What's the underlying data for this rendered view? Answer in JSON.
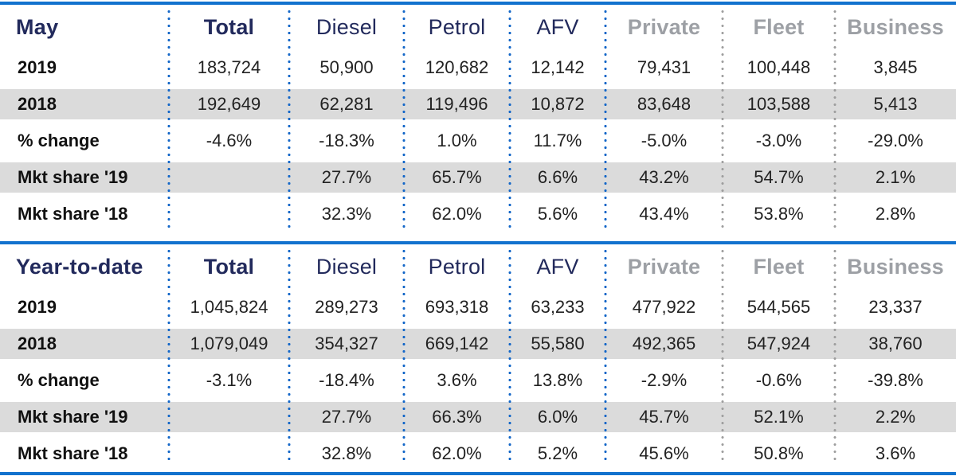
{
  "styles": {
    "accent_blue_rule": "#1272CE",
    "navy_header_text": "#222A5C",
    "gray_header_text": "#9DA0A5",
    "row_band_gray": "#DBDBDB",
    "separator_dot_blue": "#1467C8",
    "separator_dot_gray": "#9E9E9E"
  },
  "chart_data": [
    {
      "type": "table",
      "title": "May",
      "columns": [
        "Total",
        "Diesel",
        "Petrol",
        "AFV",
        "Private",
        "Fleet",
        "Business"
      ],
      "header_styles": [
        "bold-navy",
        "navy",
        "navy",
        "navy",
        "gray",
        "gray",
        "gray"
      ],
      "rows": [
        {
          "label": "2019",
          "values": [
            "183,724",
            "50,900",
            "120,682",
            "12,142",
            "79,431",
            "100,448",
            "3,845"
          ]
        },
        {
          "label": "2018",
          "values": [
            "192,649",
            "62,281",
            "119,496",
            "10,872",
            "83,648",
            "103,588",
            "5,413"
          ]
        },
        {
          "label": "% change",
          "values": [
            "-4.6%",
            "-18.3%",
            "1.0%",
            "11.7%",
            "-5.0%",
            "-3.0%",
            "-29.0%"
          ]
        },
        {
          "label": "Mkt share '19",
          "values": [
            "",
            "27.7%",
            "65.7%",
            "6.6%",
            "43.2%",
            "54.7%",
            "2.1%"
          ]
        },
        {
          "label": "Mkt share '18",
          "values": [
            "",
            "32.3%",
            "62.0%",
            "5.6%",
            "43.4%",
            "53.8%",
            "2.8%"
          ]
        }
      ]
    },
    {
      "type": "table",
      "title": "Year-to-date",
      "columns": [
        "Total",
        "Diesel",
        "Petrol",
        "AFV",
        "Private",
        "Fleet",
        "Business"
      ],
      "header_styles": [
        "bold-navy",
        "navy",
        "navy",
        "navy",
        "gray",
        "gray",
        "gray"
      ],
      "rows": [
        {
          "label": "2019",
          "values": [
            "1,045,824",
            "289,273",
            "693,318",
            "63,233",
            "477,922",
            "544,565",
            "23,337"
          ]
        },
        {
          "label": "2018",
          "values": [
            "1,079,049",
            "354,327",
            "669,142",
            "55,580",
            "492,365",
            "547,924",
            "38,760"
          ]
        },
        {
          "label": "% change",
          "values": [
            "-3.1%",
            "-18.4%",
            "3.6%",
            "13.8%",
            "-2.9%",
            "-0.6%",
            "-39.8%"
          ]
        },
        {
          "label": "Mkt share '19",
          "values": [
            "",
            "27.7%",
            "66.3%",
            "6.0%",
            "45.7%",
            "52.1%",
            "2.2%"
          ]
        },
        {
          "label": "Mkt share '18",
          "values": [
            "",
            "32.8%",
            "62.0%",
            "5.2%",
            "45.6%",
            "50.8%",
            "3.6%"
          ]
        }
      ]
    }
  ]
}
